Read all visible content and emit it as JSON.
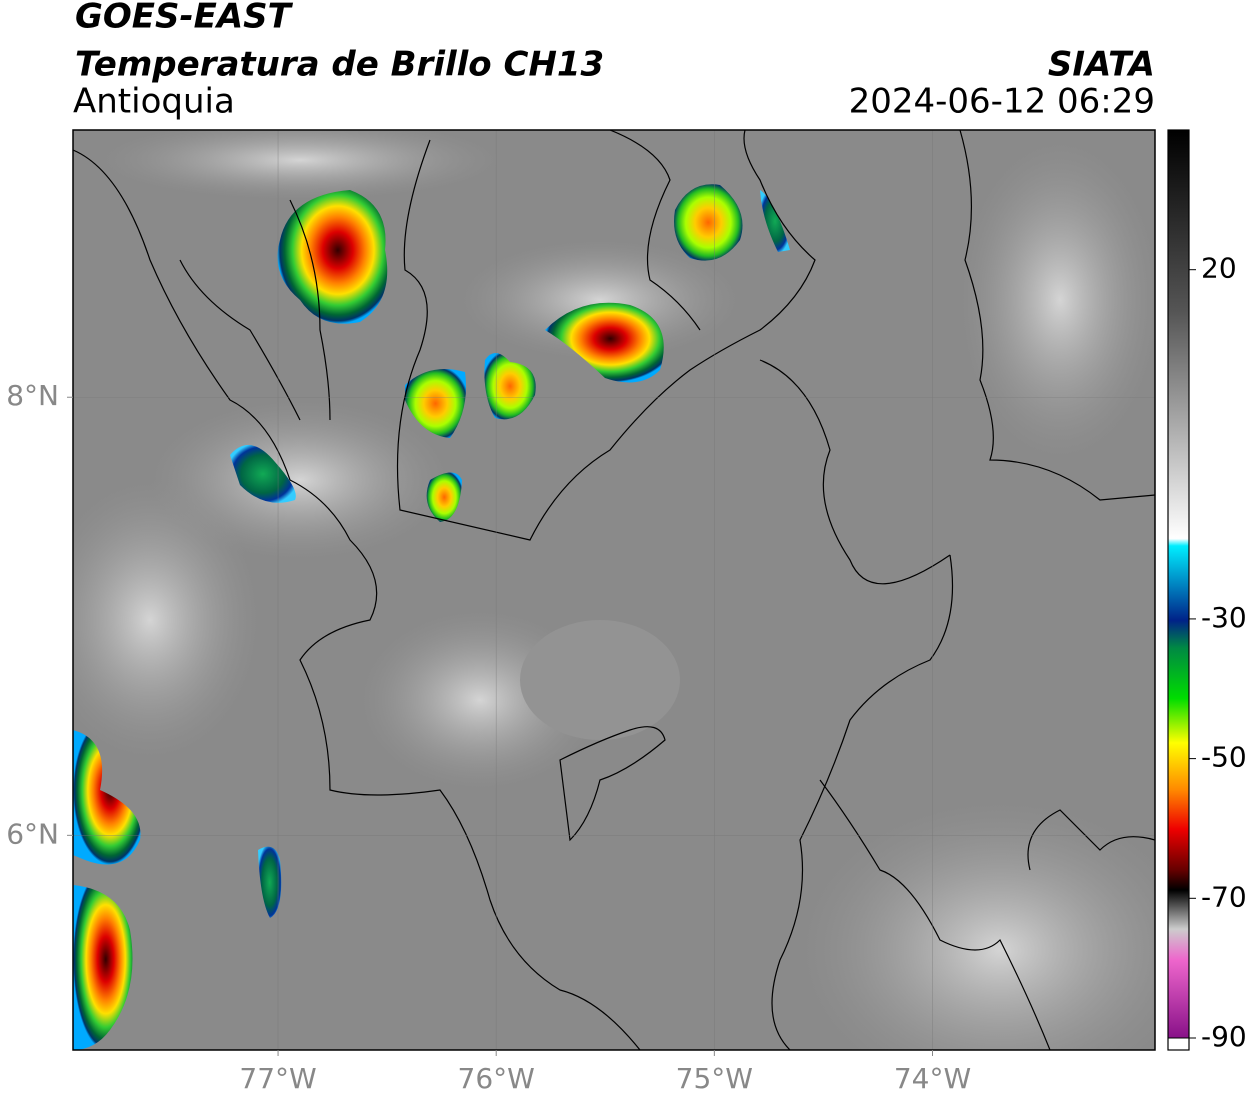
{
  "header": {
    "title": "GOES-EAST",
    "subtitle": "Temperatura de Brillo CH13",
    "region": "Antioquia",
    "source": "SIATA",
    "datetime": "2024-06-12 06:29"
  },
  "map": {
    "xlim": [
      -77.94,
      -72.98
    ],
    "ylim": [
      5.02,
      9.22
    ],
    "xticks": [
      {
        "value": -77,
        "label": "77°W"
      },
      {
        "value": -76,
        "label": "76°W"
      },
      {
        "value": -75,
        "label": "75°W"
      },
      {
        "value": -74,
        "label": "74°W"
      }
    ],
    "yticks": [
      {
        "value": 6,
        "label": "6°N"
      },
      {
        "value": 8,
        "label": "8°N"
      }
    ],
    "grid": true
  },
  "colorbar": {
    "lim": [
      -90,
      40
    ],
    "ticks": [
      20,
      -30,
      -50,
      -70,
      -90
    ]
  }
}
